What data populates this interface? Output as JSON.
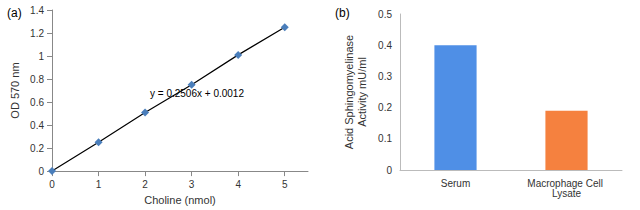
{
  "chart_data": [
    {
      "type": "line",
      "title": "(a)",
      "marker": "diamond",
      "line_style": "solid",
      "color": "#4a7ebb",
      "x": [
        0,
        1,
        2,
        3,
        4,
        5
      ],
      "values": [
        0,
        0.25,
        0.51,
        0.75,
        1.01,
        1.25
      ],
      "x_label": "Choline (nmol)",
      "y_label": "OD 570 nm",
      "annotation": "y = 0.2506x + 0.0012",
      "xlim": [
        0,
        5.5
      ],
      "xticks": [
        0,
        1,
        2,
        3,
        4,
        5
      ],
      "ylim": [
        0,
        1.4
      ],
      "yticks": [
        0,
        0.2,
        0.4,
        0.6,
        0.8,
        1,
        1.2,
        1.4
      ],
      "grid": false
    },
    {
      "type": "bar",
      "title": "(b)",
      "categories": [
        "Serum",
        "Macrophage Cell Lysate"
      ],
      "values": [
        0.4,
        0.19
      ],
      "colors": [
        "#4f8fe6",
        "#f5813f"
      ],
      "y_label": "Acid Sphingomyelinase\nActivity mU/ml",
      "ylim": [
        0,
        0.5
      ],
      "yticks": [
        0,
        0.1,
        0.2,
        0.3,
        0.4,
        0.5
      ],
      "grid": false
    }
  ]
}
